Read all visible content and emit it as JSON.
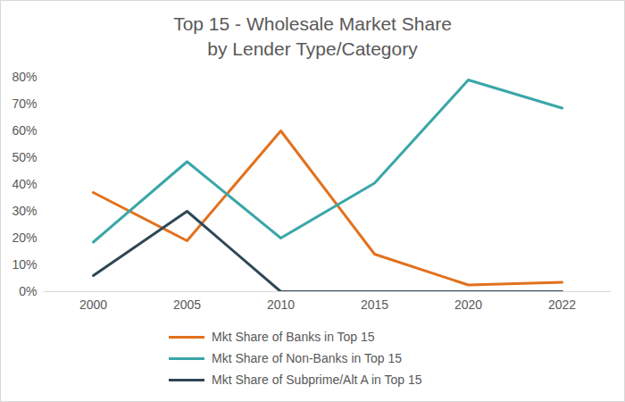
{
  "chart_data": {
    "type": "line",
    "title": "Top 15 - Wholesale Market Share\nby Lender Type/Category",
    "categories": [
      "2000",
      "2005",
      "2010",
      "2015",
      "2020",
      "2022"
    ],
    "series": [
      {
        "name": "Mkt Share of Banks in Top 15",
        "color": "#E2711D",
        "values": [
          37,
          19,
          60,
          14,
          2.5,
          3.5
        ]
      },
      {
        "name": "Mkt Share of Non-Banks in Top 15",
        "color": "#3AA6A8",
        "values": [
          18.5,
          48.5,
          20,
          40.5,
          79,
          68.5
        ]
      },
      {
        "name": "Mkt Share of Subprime/Alt A in Top 15",
        "color": "#2E4756",
        "values": [
          6,
          30,
          0,
          0,
          0,
          0
        ]
      }
    ],
    "ylim": [
      0,
      80
    ],
    "yticks": [
      {
        "value": 0,
        "label": "0%"
      },
      {
        "value": 10,
        "label": "10%"
      },
      {
        "value": 20,
        "label": "20%"
      },
      {
        "value": 30,
        "label": "30%"
      },
      {
        "value": 40,
        "label": "40%"
      },
      {
        "value": 50,
        "label": "50%"
      },
      {
        "value": 60,
        "label": "60%"
      },
      {
        "value": 70,
        "label": "70%"
      },
      {
        "value": 80,
        "label": "80%"
      }
    ],
    "grid": false,
    "legend": "bottom"
  }
}
